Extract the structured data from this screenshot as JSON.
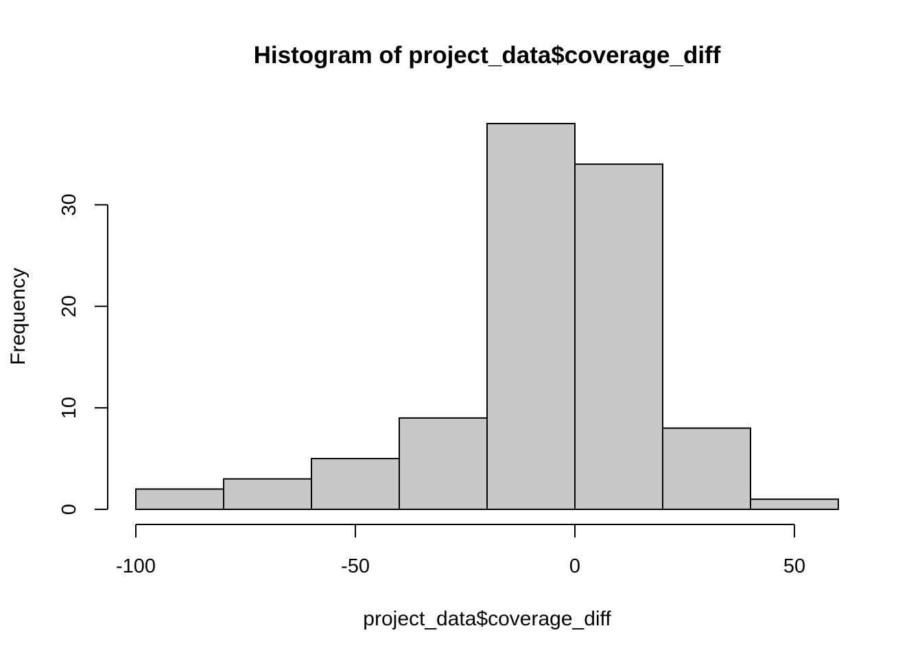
{
  "chart_data": {
    "type": "bar",
    "subtype": "histogram",
    "title": "Histogram of project_data$coverage_diff",
    "xlabel": "project_data$coverage_diff",
    "ylabel": "Frequency",
    "bins": [
      {
        "start": -100,
        "end": -80,
        "count": 2
      },
      {
        "start": -80,
        "end": -60,
        "count": 3
      },
      {
        "start": -60,
        "end": -40,
        "count": 5
      },
      {
        "start": -40,
        "end": -20,
        "count": 9
      },
      {
        "start": -20,
        "end": 0,
        "count": 38
      },
      {
        "start": 0,
        "end": 20,
        "count": 34
      },
      {
        "start": 20,
        "end": 40,
        "count": 8
      },
      {
        "start": 40,
        "end": 60,
        "count": 1
      }
    ],
    "xticks": [
      -100,
      -50,
      0,
      50
    ],
    "yticks": [
      0,
      10,
      20,
      30
    ],
    "xlim": [
      -106.4,
      63.4
    ],
    "ylim": [
      0,
      38
    ],
    "bar_fill": "#c8c8c8",
    "bar_stroke": "#000000",
    "grid": false,
    "legend": "none"
  }
}
